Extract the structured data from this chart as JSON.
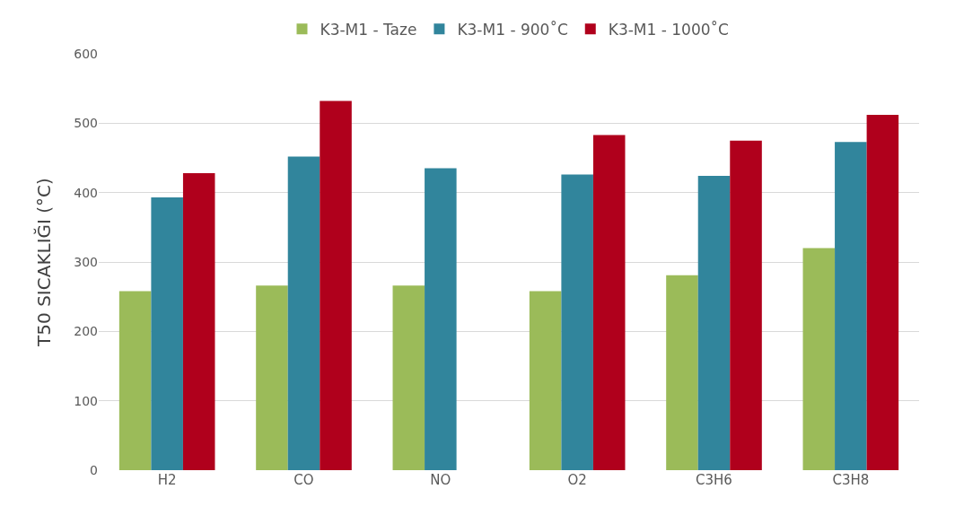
{
  "chart_data": {
    "type": "bar",
    "ylabel": "T50 SICAKLIĞI (°C)",
    "categories": [
      "H2",
      "CO",
      "NO",
      "O2",
      "C3H6",
      "C3H8"
    ],
    "series": [
      {
        "name": "K3-M1 - Taze",
        "color": "#9bbb59",
        "values": [
          258,
          266,
          266,
          258,
          281,
          320
        ]
      },
      {
        "name": "K3-M1 - 900˚C",
        "color": "#31859c",
        "values": [
          393,
          452,
          435,
          426,
          424,
          473
        ]
      },
      {
        "name": "K3-M1 - 1000˚C",
        "color": "#b0001c",
        "values": [
          428,
          532,
          0,
          483,
          475,
          512
        ]
      }
    ],
    "ylim": [
      0,
      600
    ],
    "yticks": [
      0,
      100,
      200,
      300,
      400,
      500,
      600
    ],
    "grid": "y",
    "legend": "top"
  }
}
